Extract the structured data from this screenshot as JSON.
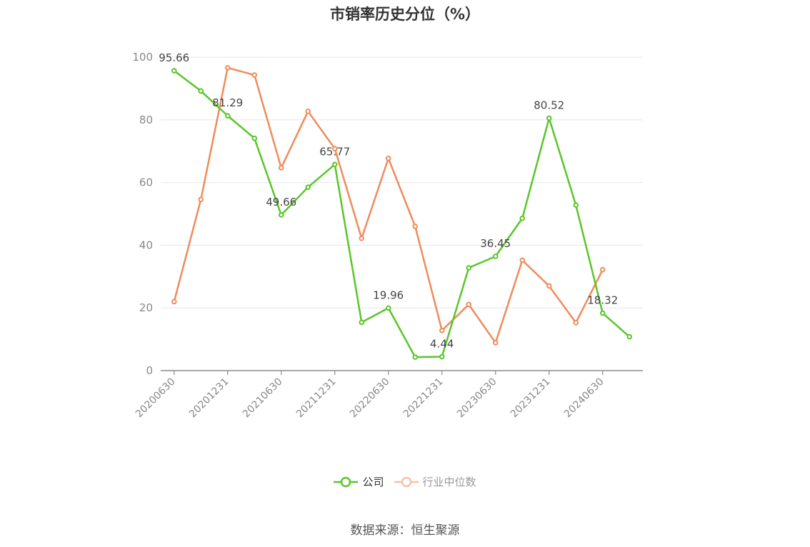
{
  "chart_data": {
    "type": "line",
    "title": "市销率历史分位（%）",
    "xlabel": "",
    "ylabel": "",
    "ylim": [
      0,
      100
    ],
    "y_ticks": [
      0,
      20,
      40,
      60,
      80,
      100
    ],
    "x": [
      "20200630",
      "20200930",
      "20201231",
      "20210331",
      "20210630",
      "20210930",
      "20211231",
      "20220331",
      "20220630",
      "20220930",
      "20221231",
      "20230331",
      "20230630",
      "20230930",
      "20231231",
      "20240331",
      "20240630",
      "20240930"
    ],
    "x_tick_labels": [
      "20200630",
      "20201231",
      "20210630",
      "20211231",
      "20220630",
      "20221231",
      "20230630",
      "20231231",
      "20240630"
    ],
    "grid": "horizontal",
    "legend_position": "bottom",
    "series": [
      {
        "name": "公司",
        "color": "#5ac629",
        "values": [
          95.66,
          89.2,
          81.29,
          74.1,
          49.66,
          58.5,
          65.77,
          15.4,
          19.96,
          4.3,
          4.44,
          32.8,
          36.45,
          48.6,
          80.52,
          52.8,
          18.32,
          10.8
        ],
        "labeled_indices": [
          0,
          2,
          4,
          6,
          8,
          10,
          12,
          14,
          16
        ],
        "labels": [
          "95.66",
          "81.29",
          "49.66",
          "65.77",
          "19.96",
          "4.44",
          "36.45",
          "80.52",
          "18.32"
        ]
      },
      {
        "name": "行业中位数",
        "color": "#f08b5b",
        "values": [
          22.0,
          54.6,
          96.6,
          94.3,
          64.7,
          82.7,
          70.8,
          42.2,
          67.7,
          46.0,
          12.8,
          21.1,
          8.9,
          35.2,
          27.0,
          15.3,
          32.2,
          null
        ]
      }
    ]
  },
  "source_text": "数据来源：恒生聚源"
}
